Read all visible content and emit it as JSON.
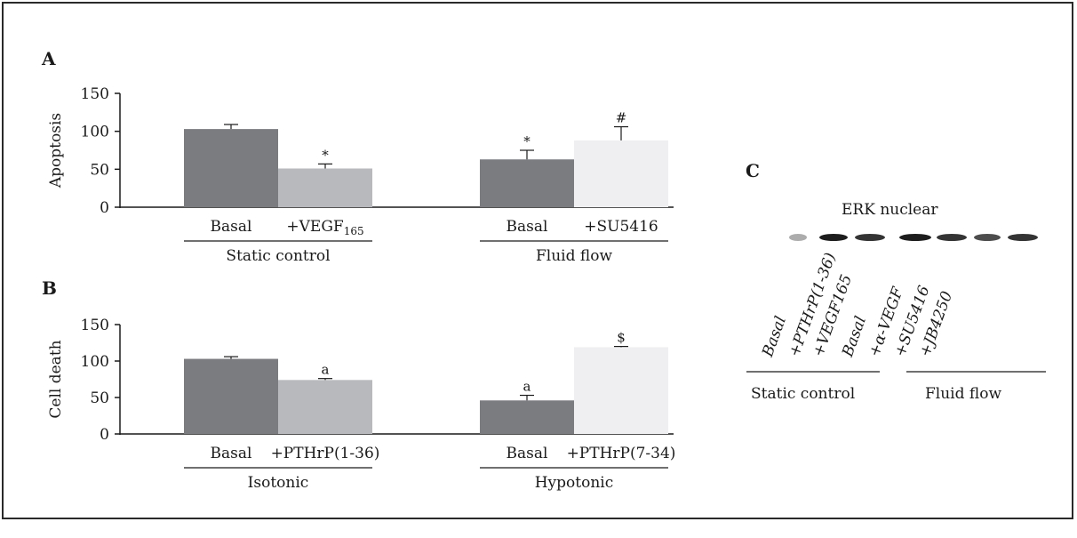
{
  "panels": {
    "a": "A",
    "b": "B",
    "c": "C"
  },
  "colors": {
    "dark_bar": "#7b7c80",
    "mid_bar": "#b8b9bc",
    "light_bar": "#efeff1",
    "axis": "#1a1a1a"
  },
  "chart_data": [
    {
      "type": "bar",
      "panel": "A",
      "ylabel": "Apoptosis",
      "ylim": [
        0,
        150
      ],
      "yticks": [
        0,
        50,
        100,
        150
      ],
      "categories": [
        "Basal",
        "+VEGF165",
        "Basal",
        "+SU5416"
      ],
      "category_main": [
        "Basal",
        "+VEGF",
        "Basal",
        "+SU5416"
      ],
      "category_sub": [
        "",
        "165",
        "",
        ""
      ],
      "groups": [
        "Static control",
        "Fluid flow"
      ],
      "values": [
        103,
        51,
        63,
        88
      ],
      "errors": [
        6,
        6,
        12,
        18
      ],
      "annotations": [
        "",
        "*",
        "*",
        "#"
      ]
    },
    {
      "type": "bar",
      "panel": "B",
      "ylabel": "Cell death",
      "ylim": [
        0,
        150
      ],
      "yticks": [
        0,
        50,
        100,
        150
      ],
      "categories": [
        "Basal",
        "+PTHrP(1-36)",
        "Basal",
        "+PTHrP(7-34)"
      ],
      "category_main": [
        "Basal",
        "+PTHrP(1-36)",
        "Basal",
        "+PTHrP(7-34)"
      ],
      "category_sub": [
        "",
        "",
        "",
        ""
      ],
      "groups": [
        "Isotonic",
        "Hypotonic"
      ],
      "values": [
        103,
        74,
        46,
        119
      ],
      "errors": [
        3,
        2,
        7,
        1
      ],
      "annotations": [
        "",
        "a",
        "a",
        "$"
      ]
    }
  ],
  "blot": {
    "title": "ERK nuclear",
    "lanes": [
      "Basal",
      "+PTHrP(1-36)",
      "+VEGF165",
      "Basal",
      "+α-VEGF",
      "+SU5416",
      "+JB4250"
    ],
    "groups": [
      "Static control",
      "Fluid flow"
    ]
  }
}
